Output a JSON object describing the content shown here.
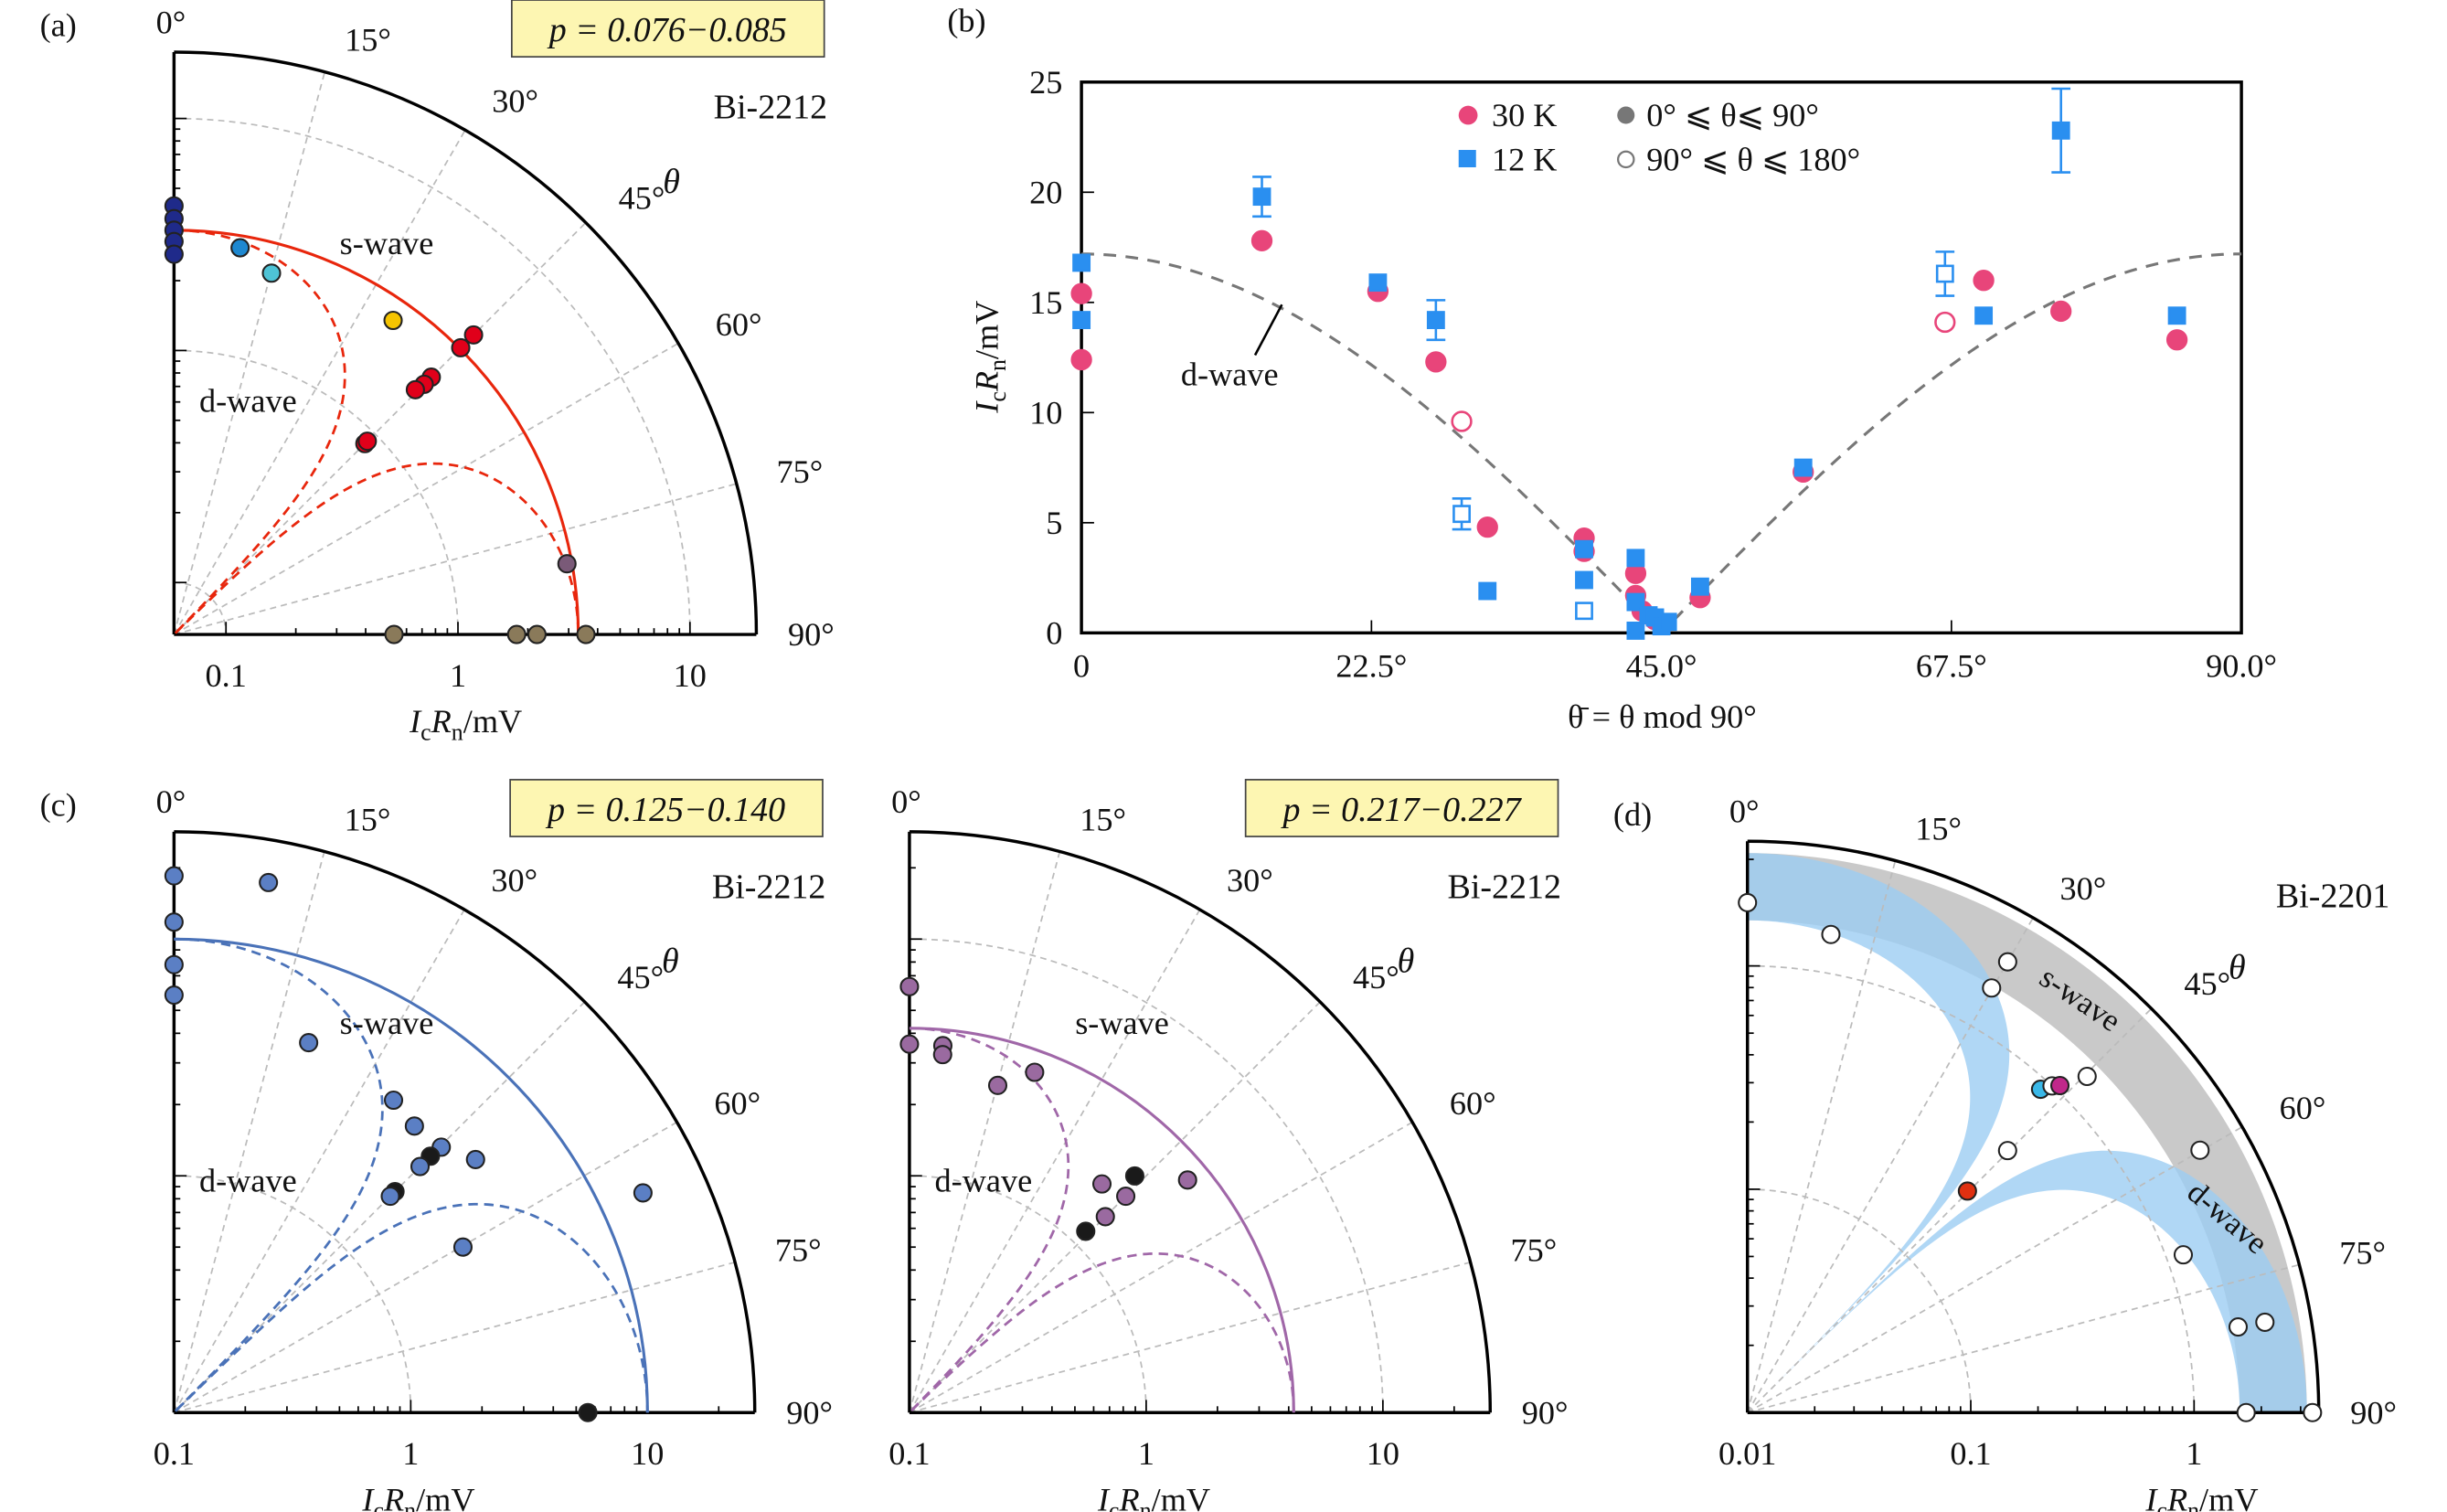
{
  "axis_label": {
    "I": "I",
    "c": "c",
    "R": "R",
    "n": "n",
    "unit": "/mV"
  },
  "angle_ticks": [
    "0°",
    "15°",
    "30°",
    "45°",
    "60°",
    "75°",
    "90°"
  ],
  "theta_symbol": "θ",
  "chart_data": [
    {
      "type": "scatter",
      "panel": "a",
      "label": "(a)",
      "coordinates": "polar (log radial)",
      "sample": "Bi-2212",
      "doping": "p = 0.076−0.085",
      "s_wave_label": "s-wave",
      "d_wave_label": "d-wave",
      "radial_ticks": [
        "0.1",
        "1",
        "10"
      ],
      "xlabel": "IcRn/mV",
      "gap_mV": 3.3,
      "model_color": "#e8260c",
      "points": [
        {
          "r": 4.2,
          "theta": 0,
          "color": "#1f2a8a"
        },
        {
          "r": 3.7,
          "theta": 0,
          "color": "#1f2a8a"
        },
        {
          "r": 3.3,
          "theta": 0,
          "color": "#1f2a8a"
        },
        {
          "r": 2.95,
          "theta": 0,
          "color": "#1f2a8a"
        },
        {
          "r": 2.6,
          "theta": 0,
          "color": "#1f2a8a"
        },
        {
          "r": 2.93,
          "theta": 9.7,
          "color": "#1e88d0"
        },
        {
          "r": 2.45,
          "theta": 15.1,
          "color": "#4ec3d6"
        },
        {
          "r": 2.67,
          "theta": 34.9,
          "color": "#f5c400"
        },
        {
          "r": 3.34,
          "theta": 45,
          "color": "#e0001a"
        },
        {
          "r": 4.0,
          "theta": 45,
          "color": "#e0001a"
        },
        {
          "r": 2.21,
          "theta": 45,
          "color": "#e0001a"
        },
        {
          "r": 2.0,
          "theta": 45,
          "color": "#e0001a"
        },
        {
          "r": 1.81,
          "theta": 44.6,
          "color": "#e0001a"
        },
        {
          "r": 0.87,
          "theta": 45,
          "color": "#e0001a"
        },
        {
          "r": 0.9,
          "theta": 45,
          "color": "#e0001a"
        },
        {
          "r": 3.14,
          "theta": 79.8,
          "color": "#7a5a78"
        },
        {
          "r": 0.53,
          "theta": 90,
          "color": "#8a7a5a"
        },
        {
          "r": 1.79,
          "theta": 90,
          "color": "#8a7a5a"
        },
        {
          "r": 2.19,
          "theta": 90,
          "color": "#8a7a5a"
        },
        {
          "r": 3.56,
          "theta": 90,
          "color": "#8a7a5a"
        }
      ]
    },
    {
      "type": "scatter",
      "panel": "b",
      "label": "(b)",
      "xlabel": "θ̄ = θ mod 90°",
      "ylabel": "IcRn/mV",
      "xlim": [
        0,
        90
      ],
      "ylim": [
        0,
        25
      ],
      "x_ticks": [
        "0",
        "22.5°",
        "45.0°",
        "67.5°",
        "90.0°"
      ],
      "x_tick_values": [
        0,
        22.5,
        45,
        67.5,
        90
      ],
      "y_ticks": [
        "0",
        "5",
        "10",
        "15",
        "20",
        "25"
      ],
      "y_tick_values": [
        0,
        5,
        10,
        15,
        20,
        25
      ],
      "legend": {
        "s30": "30 K",
        "s12": "12 K",
        "closed": "0° ⩽ θ⩽ 90°",
        "open": "90° ⩽ θ ⩽ 180°"
      },
      "d_wave_label": "d-wave",
      "d_wave_amplitude": 17.2,
      "colors": {
        "30K": "#e8457a",
        "12K": "#2a8ff0",
        "model": "#777777"
      },
      "series": [
        {
          "name": "30 K",
          "marker": "circle",
          "points": [
            {
              "x": 0,
              "y": 15.4
            },
            {
              "x": 0,
              "y": 12.4
            },
            {
              "x": 14,
              "y": 17.8
            },
            {
              "x": 23,
              "y": 15.5
            },
            {
              "x": 27.5,
              "y": 12.3
            },
            {
              "x": 31.5,
              "y": 4.8
            },
            {
              "x": 39,
              "y": 4.3
            },
            {
              "x": 39,
              "y": 3.7
            },
            {
              "x": 43,
              "y": 2.7
            },
            {
              "x": 43,
              "y": 1.7
            },
            {
              "x": 43.5,
              "y": 1.0
            },
            {
              "x": 44.5,
              "y": 0.6
            },
            {
              "x": 48,
              "y": 1.6
            },
            {
              "x": 56,
              "y": 7.3
            },
            {
              "x": 70,
              "y": 16.0
            },
            {
              "x": 76,
              "y": 14.6
            },
            {
              "x": 85,
              "y": 13.3
            },
            {
              "x": 29.5,
              "y": 9.6,
              "open": true
            },
            {
              "x": 67,
              "y": 14.1,
              "open": true
            }
          ]
        },
        {
          "name": "12 K",
          "marker": "square",
          "points": [
            {
              "x": 0,
              "y": 16.8
            },
            {
              "x": 0,
              "y": 14.2
            },
            {
              "x": 14,
              "y": 19.8,
              "err": 0.9
            },
            {
              "x": 23,
              "y": 15.9
            },
            {
              "x": 27.5,
              "y": 14.2,
              "err": 0.9
            },
            {
              "x": 31.5,
              "y": 1.9
            },
            {
              "x": 39,
              "y": 3.8
            },
            {
              "x": 39,
              "y": 2.4
            },
            {
              "x": 43,
              "y": 3.4
            },
            {
              "x": 43,
              "y": 1.4
            },
            {
              "x": 43,
              "y": 0.1
            },
            {
              "x": 44,
              "y": 0.8
            },
            {
              "x": 44.5,
              "y": 0.7
            },
            {
              "x": 45,
              "y": 0.3
            },
            {
              "x": 45.5,
              "y": 0.5
            },
            {
              "x": 48,
              "y": 2.1
            },
            {
              "x": 56,
              "y": 7.5
            },
            {
              "x": 70,
              "y": 14.4
            },
            {
              "x": 76,
              "y": 22.8,
              "err": 1.9
            },
            {
              "x": 85,
              "y": 14.4
            },
            {
              "x": 29.5,
              "y": 5.4,
              "err": 0.7,
              "open": true
            },
            {
              "x": 39,
              "y": 1.0,
              "open": true
            },
            {
              "x": 67,
              "y": 16.3,
              "err": 1.0,
              "open": true
            }
          ]
        }
      ]
    },
    {
      "type": "scatter",
      "panel": "c1",
      "label": "(c)",
      "coordinates": "polar (log radial)",
      "sample": "Bi-2212",
      "doping": "p = 0.125−0.140",
      "s_wave_label": "s-wave",
      "d_wave_label": "d-wave",
      "radial_ticks": [
        "0.1",
        "1",
        "10"
      ],
      "xlabel": "IcRn/mV",
      "gap_mV": 10,
      "model_color": "#4a72b8",
      "points": [
        {
          "r": 18.5,
          "theta": 0,
          "color": "#5b7fc4"
        },
        {
          "r": 11.8,
          "theta": 0,
          "color": "#5b7fc4"
        },
        {
          "r": 7.8,
          "theta": 0,
          "color": "#5b7fc4"
        },
        {
          "r": 5.8,
          "theta": 0,
          "color": "#5b7fc4"
        },
        {
          "r": 18.8,
          "theta": 10.1,
          "color": "#5b7fc4"
        },
        {
          "r": 4.6,
          "theta": 20,
          "color": "#5b7fc4"
        },
        {
          "r": 4.1,
          "theta": 35.1,
          "color": "#5b7fc4"
        },
        {
          "r": 3.8,
          "theta": 40,
          "color": "#5b7fc4"
        },
        {
          "r": 3.9,
          "theta": 45.2,
          "color": "#5b7fc4"
        },
        {
          "r": 3.4,
          "theta": 45,
          "color": "#1a1a1a"
        },
        {
          "r": 2.95,
          "theta": 45,
          "color": "#5b7fc4"
        },
        {
          "r": 4.6,
          "theta": 50,
          "color": "#5b7fc4"
        },
        {
          "r": 2.09,
          "theta": 45,
          "color": "#1a1a1a"
        },
        {
          "r": 1.96,
          "theta": 45,
          "color": "#5b7fc4"
        },
        {
          "r": 15.4,
          "theta": 64.9,
          "color": "#5b7fc4"
        },
        {
          "r": 2.55,
          "theta": 60.2,
          "color": "#5b7fc4"
        },
        {
          "r": 5.6,
          "theta": 90,
          "color": "#1a1a1a"
        }
      ]
    },
    {
      "type": "scatter",
      "panel": "c2",
      "label": "",
      "coordinates": "polar (log radial)",
      "sample": "Bi-2212",
      "doping": "p = 0.217−0.227",
      "s_wave_label": "s-wave",
      "d_wave_label": "d-wave",
      "radial_ticks": [
        "0.1",
        "1",
        "10"
      ],
      "xlabel": "IcRn/mV",
      "gap_mV": 4.2,
      "model_color": "#a067a8",
      "points": [
        {
          "r": 6.3,
          "theta": 0,
          "color": "#9a6aa0"
        },
        {
          "r": 3.6,
          "theta": 0,
          "color": "#9a6aa0"
        },
        {
          "r": 3.6,
          "theta": 5.2,
          "color": "#9a6aa0"
        },
        {
          "r": 3.3,
          "theta": 5.3,
          "color": "#9a6aa0"
        },
        {
          "r": 2.7,
          "theta": 15.1,
          "color": "#9a6aa0"
        },
        {
          "r": 3.4,
          "theta": 20.2,
          "color": "#9a6aa0"
        },
        {
          "r": 1.83,
          "theta": 40.1,
          "color": "#9a6aa0"
        },
        {
          "r": 2.4,
          "theta": 43.6,
          "color": "#1a1a1a"
        },
        {
          "r": 1.96,
          "theta": 45,
          "color": "#9a6aa0"
        },
        {
          "r": 3.4,
          "theta": 50.1,
          "color": "#9a6aa0"
        },
        {
          "r": 1.48,
          "theta": 45,
          "color": "#9a6aa0"
        },
        {
          "r": 1.17,
          "theta": 44.2,
          "color": "#1a1a1a"
        }
      ]
    },
    {
      "type": "scatter",
      "panel": "d",
      "label": "(d)",
      "coordinates": "polar (log radial)",
      "sample": "Bi-2201",
      "s_wave_label": "s-wave",
      "d_wave_label": "d-wave",
      "radial_ticks": [
        "0.01",
        "0.1",
        "1"
      ],
      "xlabel": "IcRn/mV",
      "gap_band_mV": [
        1.6,
        3.2
      ],
      "band_colors": {
        "s": "#c9c9c9",
        "d": "#9ccdf3"
      },
      "points": [
        {
          "r": 1.92,
          "theta": 0,
          "color": "#ffffff"
        },
        {
          "r": 1.49,
          "theta": 9.9,
          "color": "#ffffff"
        },
        {
          "r": 2.14,
          "theta": 30,
          "color": "#ffffff"
        },
        {
          "r": 1.56,
          "theta": 29.9,
          "color": "#ffffff"
        },
        {
          "r": 0.9,
          "theta": 42.2,
          "color": "#3ab8e8"
        },
        {
          "r": 1.0,
          "theta": 43,
          "color": "#ffffff"
        },
        {
          "r": 1.06,
          "theta": 43.7,
          "color": "#c0288a"
        },
        {
          "r": 1.38,
          "theta": 45.3,
          "color": "#ffffff"
        },
        {
          "r": 0.45,
          "theta": 44.8,
          "color": "#ffffff"
        },
        {
          "r": 0.25,
          "theta": 44.8,
          "color": "#e03010"
        },
        {
          "r": 2.2,
          "theta": 59.9,
          "color": "#ffffff"
        },
        {
          "r": 1.19,
          "theta": 70.1,
          "color": "#ffffff"
        },
        {
          "r": 1.7,
          "theta": 80.1,
          "color": "#ffffff"
        },
        {
          "r": 2.25,
          "theta": 80.1,
          "color": "#ffffff"
        },
        {
          "r": 1.71,
          "theta": 90,
          "color": "#ffffff"
        },
        {
          "r": 3.39,
          "theta": 90,
          "color": "#ffffff"
        }
      ]
    }
  ]
}
